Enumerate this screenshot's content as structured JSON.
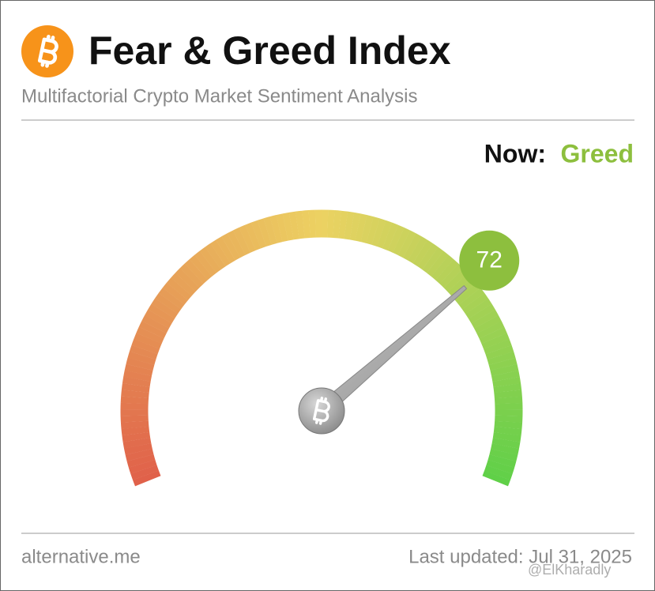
{
  "chart_data": {
    "type": "gauge",
    "title": "Fear & Greed Index",
    "subtitle": "Multifactorial Crypto Market Sentiment Analysis",
    "now_label": "Now:",
    "classification": "Greed",
    "classification_color": "#8dbf3e",
    "value": 72,
    "ylim": [
      0,
      100
    ],
    "colors": [
      "#e0604a",
      "#ecd262",
      "#5fd048"
    ],
    "source": "alternative.me",
    "updated": "Last updated: Jul 31, 2025",
    "watermark": "@ElKharadly"
  }
}
